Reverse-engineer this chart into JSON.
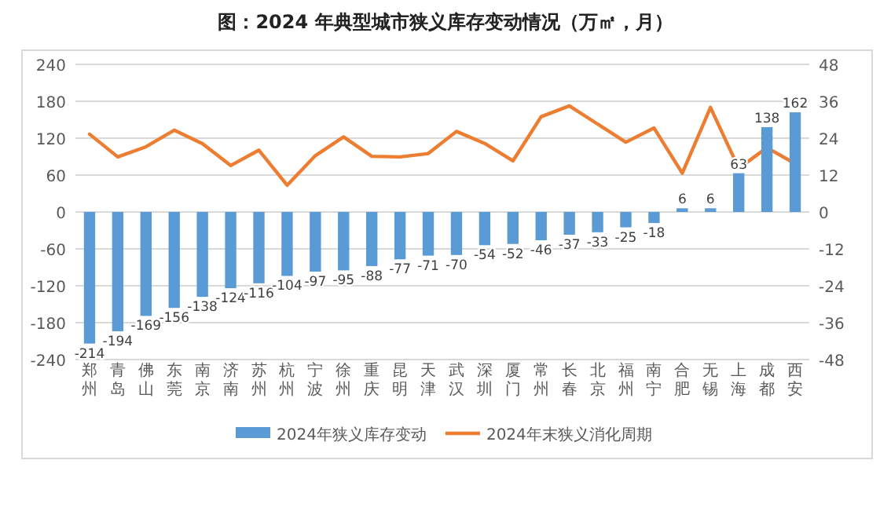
{
  "chart_data": {
    "type": "bar",
    "title": "图：2024 年典型城市狭义库存变动情况（万㎡，月）",
    "categories": [
      "郑州",
      "青岛",
      "佛山",
      "东莞",
      "南京",
      "济南",
      "苏州",
      "杭州",
      "宁波",
      "徐州",
      "重庆",
      "昆明",
      "天津",
      "武汉",
      "深圳",
      "厦门",
      "常州",
      "长春",
      "北京",
      "福州",
      "南宁",
      "合肥",
      "无锡",
      "上海",
      "成都",
      "西安"
    ],
    "series": [
      {
        "name": "2024年狭义库存变动",
        "color": "#5b9bd5",
        "values": [
          -214,
          -194,
          -169,
          -156,
          -138,
          -124,
          -116,
          -104,
          -97,
          -95,
          -88,
          -77,
          -71,
          -70,
          -54,
          -52,
          -46,
          -37,
          -33,
          -25,
          -18,
          6,
          6,
          63,
          138,
          162
        ],
        "value_labels": [
          "-214",
          "-194",
          "-169",
          "-156",
          "-138",
          "-124",
          "-116",
          "-104",
          "-97",
          "-95",
          "-88",
          "-77",
          "-71",
          "-70",
          "-54",
          "-52",
          "-46",
          "-37",
          "-33",
          "-25",
          "-18",
          "6",
          "6",
          "63",
          "138",
          "162"
        ]
      },
      {
        "name": "2024年末狭义消化周期",
        "type": "line",
        "axis": "y2",
        "color": "#ed7d31",
        "values": [
          25.3,
          17.9,
          21.2,
          26.6,
          22.2,
          15.1,
          20.1,
          8.7,
          18.3,
          24.4,
          18.1,
          17.9,
          19.0,
          26.2,
          22.3,
          16.6,
          31.0,
          34.5,
          28.6,
          22.7,
          27.3,
          12.6,
          34.0,
          14.2,
          20.9,
          15.7
        ]
      }
    ],
    "ylim": [
      -240,
      240
    ],
    "yticks": [
      -240,
      -180,
      -120,
      -60,
      0,
      60,
      120,
      180,
      240
    ],
    "y2lim": [
      -48,
      48
    ],
    "y2ticks": [
      -48,
      -36,
      -24,
      -12,
      0,
      12,
      24,
      36,
      48
    ],
    "grid": "y",
    "legend": "bottom",
    "marker": "none",
    "line_style": "solid"
  }
}
